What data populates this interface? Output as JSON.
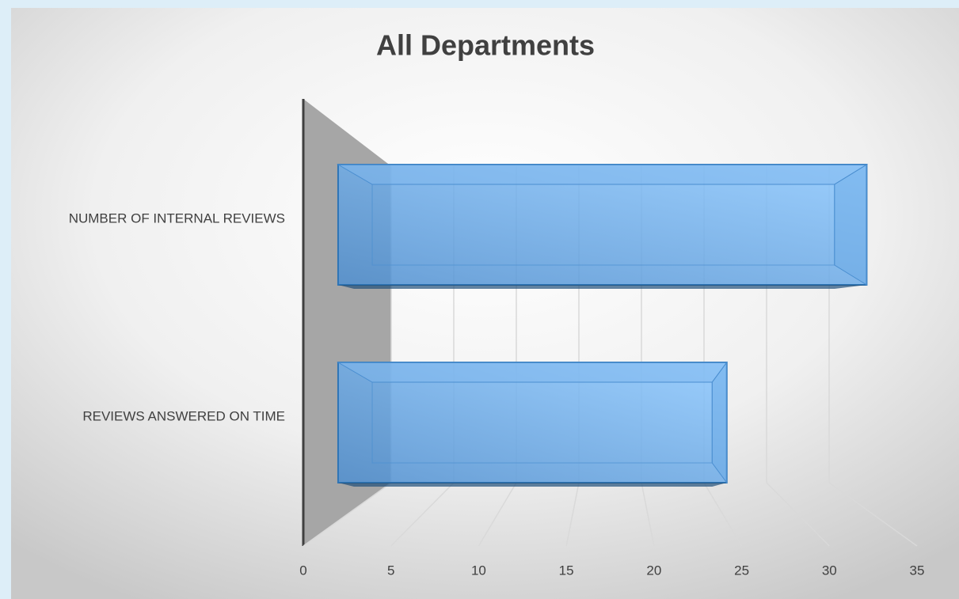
{
  "chart_data": {
    "type": "bar3d",
    "orientation": "horizontal",
    "title": "All Departments",
    "categories": [
      "NUMBER OF INTERNAL REVIEWS",
      "REVIEWS ANSWERED ON TIME"
    ],
    "values": [
      34,
      25
    ],
    "color": "#5b9bd5",
    "xlim": [
      0,
      35
    ],
    "xticks": [
      0,
      5,
      10,
      15,
      20,
      25,
      30,
      35
    ],
    "grid": true
  }
}
